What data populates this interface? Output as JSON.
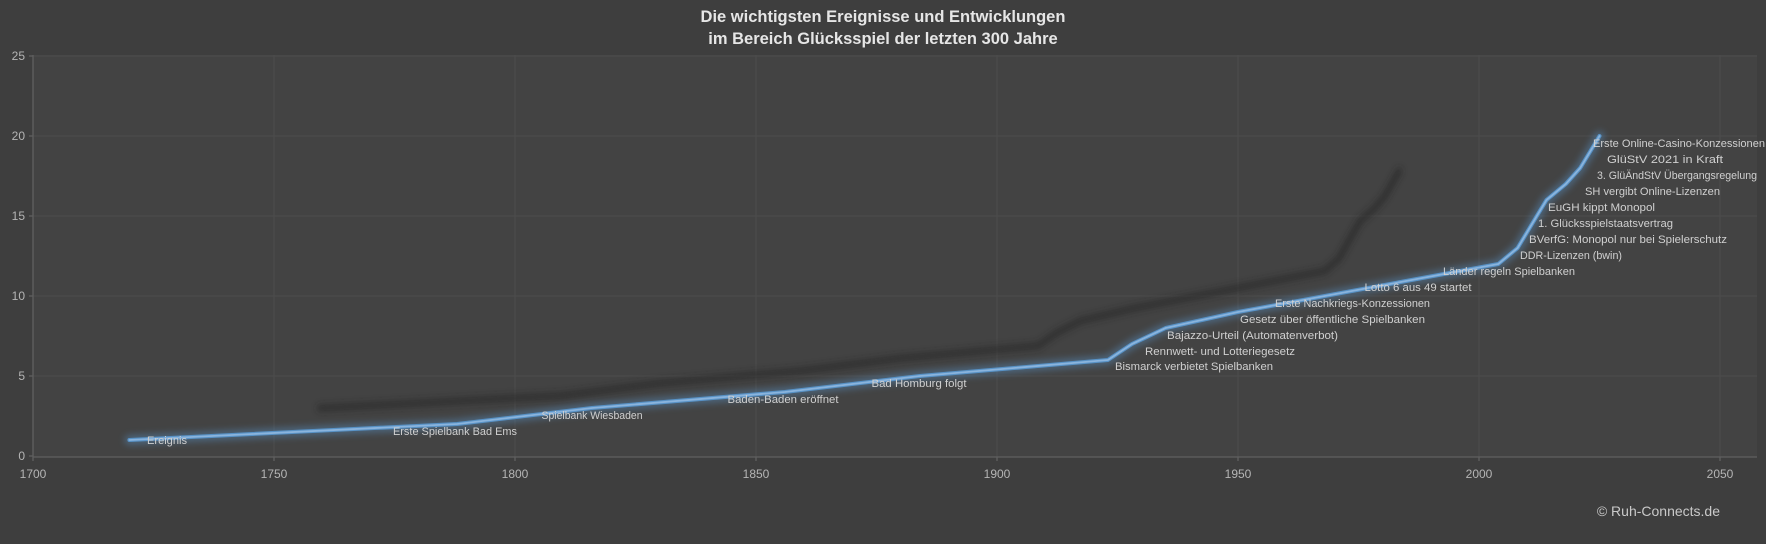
{
  "title": {
    "line1": "Die wichtigsten Ereignisse und Entwicklungen",
    "line2": "im Bereich Glücksspiel der letzten 300 Jahre"
  },
  "footer": {
    "copyright": "© Ruh-Connects.de"
  },
  "colors": {
    "page_background": "#3e3e3e",
    "plot_background": "#434343",
    "gridline": "#4c4c4c",
    "axis_line": "#606060",
    "tick_label": "#b5b5b5",
    "title_text": "#e6e6e6",
    "data_label": "#d0d0d0",
    "series_line": "#5b9bd5",
    "series_line_core": "#8ab4dd",
    "shadow": "#242424"
  },
  "chart_data": {
    "type": "line",
    "title": "Die wichtigsten Ereignisse und Entwicklungen im Bereich Glücksspiel der letzten 300 Jahre",
    "xlabel": "",
    "ylabel": "",
    "grid": true,
    "legend_position": "none",
    "series_name": "Ereignis",
    "xlim": [
      1700,
      2058
    ],
    "ylim": [
      0,
      25
    ],
    "x_ticks": [
      "1700",
      "1750",
      "1800",
      "1850",
      "1900",
      "1950",
      "2000",
      "2050"
    ],
    "y_ticks": [
      "0",
      "5",
      "10",
      "15",
      "20",
      "25"
    ],
    "points": [
      {
        "year": 1720,
        "value": 1,
        "label": "Ereignis"
      },
      {
        "year": 1788,
        "value": 2,
        "label": "Erste Spielbank Bad Ems"
      },
      {
        "year": 1816,
        "value": 3,
        "label": "Spielbank Wiesbaden"
      },
      {
        "year": 1856,
        "value": 4,
        "label": "Baden-Baden eröffnet"
      },
      {
        "year": 1884,
        "value": 5,
        "label": "Bad Homburg folgt"
      },
      {
        "year": 1923,
        "value": 6,
        "label": "Bismarck verbietet Spielbanken"
      },
      {
        "year": 1928,
        "value": 7,
        "label": "Rennwett- und Lotteriegesetz"
      },
      {
        "year": 1935,
        "value": 8,
        "label": "Bajazzo-Urteil (Automatenverbot)"
      },
      {
        "year": 1950,
        "value": 9,
        "label": "Gesetz über öffentliche Spielbanken"
      },
      {
        "year": 1968,
        "value": 10,
        "label": "Erste Nachkriegs-Konzessionen"
      },
      {
        "year": 1986,
        "value": 11,
        "label": "Lotto 6 aus 49 startet"
      },
      {
        "year": 2004,
        "value": 12,
        "label": "Länder regeln Spielbanken"
      },
      {
        "year": 2008,
        "value": 13,
        "label": "DDR-Lizenzen (bwin)"
      },
      {
        "year": 2010,
        "value": 14,
        "label": "BVerfG: Monopol nur bei Spielerschutz"
      },
      {
        "year": 2012,
        "value": 15,
        "label": "1. Glücksspielstaatsvertrag"
      },
      {
        "year": 2014,
        "value": 16,
        "label": "EuGH kippt Monopol"
      },
      {
        "year": 2018,
        "value": 17,
        "label": "SH vergibt Online-Lizenzen"
      },
      {
        "year": 2021,
        "value": 18,
        "label": "3. GlüÄndStV Übergangsregelung"
      },
      {
        "year": 2023,
        "value": 19,
        "label": "GlüStV 2021 in Kraft"
      },
      {
        "year": 2025,
        "value": 20,
        "label": "Erste Online-Casino-Konzessionen"
      }
    ]
  }
}
